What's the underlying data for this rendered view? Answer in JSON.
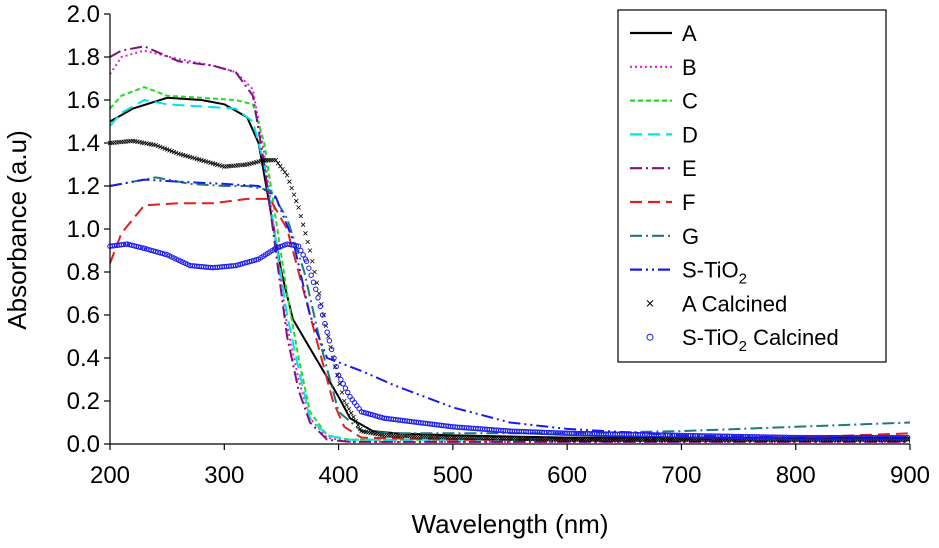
{
  "chart_data": {
    "type": "line",
    "title": "",
    "xlabel": "Wavelength (nm)",
    "ylabel": "Absorbance (a.u)",
    "xlim": [
      200,
      900
    ],
    "ylim": [
      0.0,
      2.0
    ],
    "x_ticks": [
      "200",
      "300",
      "400",
      "500",
      "600",
      "700",
      "800",
      "900"
    ],
    "y_ticks": [
      "0.0",
      "0.2",
      "0.4",
      "0.6",
      "0.8",
      "1.0",
      "1.2",
      "1.4",
      "1.6",
      "1.8",
      "2.0"
    ],
    "legend_position": "top-right",
    "grid": false,
    "series": [
      {
        "name": "A",
        "color": "#000000",
        "style": "solid",
        "x": [
          200,
          220,
          250,
          280,
          300,
          320,
          330,
          340,
          350,
          360,
          380,
          400,
          410,
          430,
          450,
          500,
          600,
          700,
          800,
          900
        ],
        "y": [
          1.5,
          1.56,
          1.61,
          1.6,
          1.58,
          1.52,
          1.4,
          1.1,
          0.8,
          0.58,
          0.4,
          0.22,
          0.12,
          0.06,
          0.05,
          0.04,
          0.03,
          0.03,
          0.03,
          0.03
        ]
      },
      {
        "name": "B",
        "color": "#e020e0",
        "style": "dotted",
        "x": [
          200,
          210,
          230,
          260,
          290,
          310,
          325,
          335,
          345,
          355,
          365,
          375,
          390,
          410,
          430,
          500,
          600,
          700,
          800,
          900
        ],
        "y": [
          1.72,
          1.8,
          1.83,
          1.79,
          1.76,
          1.73,
          1.65,
          1.35,
          0.95,
          0.55,
          0.3,
          0.12,
          0.03,
          0.01,
          0.01,
          0.01,
          0.01,
          0.01,
          0.01,
          0.01
        ]
      },
      {
        "name": "C",
        "color": "#22dd22",
        "style": "shortdash",
        "x": [
          200,
          210,
          230,
          250,
          280,
          310,
          325,
          335,
          345,
          355,
          365,
          375,
          390,
          410,
          430,
          500,
          600,
          700,
          800,
          900
        ],
        "y": [
          1.56,
          1.62,
          1.66,
          1.62,
          1.61,
          1.6,
          1.58,
          1.4,
          1.05,
          0.7,
          0.4,
          0.15,
          0.04,
          0.02,
          0.02,
          0.02,
          0.02,
          0.02,
          0.02,
          0.02
        ]
      },
      {
        "name": "D",
        "color": "#00e5e5",
        "style": "longdash",
        "x": [
          200,
          210,
          230,
          250,
          280,
          310,
          325,
          335,
          345,
          355,
          365,
          375,
          390,
          410,
          430,
          500,
          600,
          700,
          800,
          900
        ],
        "y": [
          1.48,
          1.54,
          1.6,
          1.58,
          1.57,
          1.56,
          1.5,
          1.3,
          0.95,
          0.6,
          0.35,
          0.12,
          0.04,
          0.02,
          0.02,
          0.02,
          0.02,
          0.02,
          0.02,
          0.02
        ]
      },
      {
        "name": "E",
        "color": "#801080",
        "style": "dashdot",
        "x": [
          200,
          210,
          230,
          260,
          290,
          310,
          325,
          335,
          345,
          355,
          365,
          375,
          390,
          410,
          430,
          500,
          600,
          700,
          800,
          900
        ],
        "y": [
          1.8,
          1.83,
          1.85,
          1.78,
          1.76,
          1.73,
          1.62,
          1.3,
          0.9,
          0.5,
          0.25,
          0.1,
          0.02,
          0.01,
          0.01,
          0.01,
          0.01,
          0.01,
          0.01,
          0.01
        ]
      },
      {
        "name": "F",
        "color": "#e02020",
        "style": "longdash",
        "x": [
          200,
          210,
          230,
          260,
          290,
          320,
          340,
          355,
          365,
          375,
          385,
          395,
          405,
          420,
          500,
          600,
          700,
          800,
          900
        ],
        "y": [
          0.84,
          0.98,
          1.11,
          1.12,
          1.12,
          1.14,
          1.14,
          1.0,
          0.8,
          0.6,
          0.4,
          0.2,
          0.08,
          0.03,
          0.02,
          0.02,
          0.02,
          0.03,
          0.05
        ]
      },
      {
        "name": "G",
        "color": "#207a7a",
        "style": "dashdot",
        "x": [
          200,
          220,
          240,
          270,
          300,
          320,
          340,
          355,
          370,
          385,
          400,
          420,
          450,
          500,
          600,
          700,
          800,
          900
        ],
        "y": [
          1.2,
          1.22,
          1.24,
          1.21,
          1.2,
          1.2,
          1.18,
          1.05,
          0.8,
          0.45,
          0.15,
          0.06,
          0.05,
          0.05,
          0.05,
          0.06,
          0.08,
          0.1
        ]
      },
      {
        "name": "S-TiO2",
        "color": "#1a1aee",
        "style": "dashdotdot",
        "x": [
          200,
          230,
          260,
          300,
          330,
          345,
          360,
          375,
          390,
          400,
          420,
          450,
          500,
          550,
          600,
          700,
          800,
          900
        ],
        "y": [
          1.2,
          1.23,
          1.22,
          1.21,
          1.2,
          1.15,
          0.95,
          0.6,
          0.4,
          0.38,
          0.34,
          0.27,
          0.17,
          0.1,
          0.07,
          0.04,
          0.03,
          0.02
        ]
      },
      {
        "name": "A Calcined",
        "color": "#000000",
        "style": "marker-x",
        "x": [
          200,
          220,
          240,
          260,
          280,
          300,
          320,
          335,
          345,
          355,
          365,
          375,
          385,
          395,
          405,
          420,
          440,
          500,
          600,
          700,
          800,
          900
        ],
        "y": [
          1.4,
          1.41,
          1.39,
          1.35,
          1.32,
          1.29,
          1.3,
          1.32,
          1.32,
          1.25,
          1.1,
          0.9,
          0.65,
          0.4,
          0.2,
          0.06,
          0.04,
          0.03,
          0.02,
          0.02,
          0.02,
          0.02
        ]
      },
      {
        "name": "S-TiO2 Calcined",
        "color": "#1a1aee",
        "style": "marker-o",
        "x": [
          200,
          215,
          230,
          250,
          270,
          290,
          310,
          330,
          345,
          355,
          365,
          372,
          380,
          390,
          400,
          410,
          420,
          440,
          470,
          500,
          550,
          600,
          700,
          800,
          900
        ],
        "y": [
          0.92,
          0.93,
          0.91,
          0.88,
          0.83,
          0.82,
          0.83,
          0.86,
          0.91,
          0.93,
          0.92,
          0.85,
          0.72,
          0.52,
          0.32,
          0.22,
          0.15,
          0.12,
          0.1,
          0.08,
          0.06,
          0.05,
          0.04,
          0.03,
          0.03
        ]
      }
    ]
  }
}
